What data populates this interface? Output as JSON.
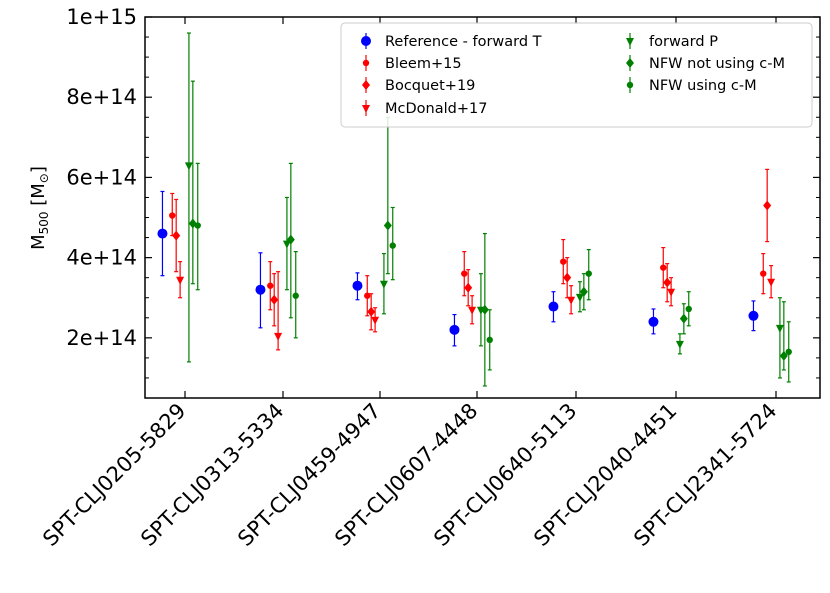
{
  "chart_data": {
    "type": "scatter",
    "title": "",
    "xlabel": "",
    "ylabel": "M500 [M⊙]",
    "ylabel_parts": {
      "base": "M",
      "sub": "500",
      "unit_open": " [M",
      "unit_sub": "⊙",
      "unit_close": "]"
    },
    "ylim": [
      50000000000000,
      1000000000000000
    ],
    "yticks": [
      200000000000000,
      400000000000000,
      600000000000000,
      800000000000000,
      1000000000000000
    ],
    "ytick_labels": [
      "2e+14",
      "4e+14",
      "6e+14",
      "8e+14",
      "1e+15"
    ],
    "categories": [
      "SPT-CLJ0205-5829",
      "SPT-CLJ0313-5334",
      "SPT-CLJ0459-4947",
      "SPT-CLJ0607-4448",
      "SPT-CLJ0640-5113",
      "SPT-CLJ2040-4451",
      "SPT-CLJ2341-5724"
    ],
    "legend_position": "top-right",
    "series": [
      {
        "name": "Reference - forward T",
        "color": "#0000ff",
        "marker": "circle",
        "offset": -0.23,
        "values": [
          460000000000000.0,
          320000000000000.0,
          330000000000000.0,
          220000000000000.0,
          278000000000000.0,
          240000000000000.0,
          255000000000000.0
        ],
        "lower": [
          355000000000000.0,
          225000000000000.0,
          295000000000000.0,
          180000000000000.0,
          240000000000000.0,
          210000000000000.0,
          218000000000000.0
        ],
        "upper": [
          565000000000000.0,
          412000000000000.0,
          362000000000000.0,
          258000000000000.0,
          315000000000000.0,
          272000000000000.0,
          292000000000000.0
        ]
      },
      {
        "name": "Bleem+15",
        "color": "#ff0000",
        "marker": "small-circle",
        "offset": -0.13,
        "values": [
          505000000000000.0,
          330000000000000.0,
          305000000000000.0,
          360000000000000.0,
          390000000000000.0,
          375000000000000.0,
          360000000000000.0
        ],
        "lower": [
          455000000000000.0,
          270000000000000.0,
          255000000000000.0,
          305000000000000.0,
          335000000000000.0,
          325000000000000.0,
          310000000000000.0
        ],
        "upper": [
          560000000000000.0,
          390000000000000.0,
          355000000000000.0,
          415000000000000.0,
          445000000000000.0,
          425000000000000.0,
          410000000000000.0
        ]
      },
      {
        "name": "Bocquet+19",
        "color": "#ff0000",
        "marker": "diamond",
        "offset": -0.09,
        "values": [
          455000000000000.0,
          295000000000000.0,
          265000000000000.0,
          325000000000000.0,
          350000000000000.0,
          338000000000000.0,
          530000000000000.0
        ],
        "lower": [
          365000000000000.0,
          230000000000000.0,
          220000000000000.0,
          280000000000000.0,
          300000000000000.0,
          290000000000000.0,
          440000000000000.0
        ],
        "upper": [
          545000000000000.0,
          360000000000000.0,
          310000000000000.0,
          370000000000000.0,
          400000000000000.0,
          385000000000000.0,
          620000000000000.0
        ]
      },
      {
        "name": "McDonald+17",
        "color": "#ff0000",
        "marker": "triangle-down",
        "offset": -0.05,
        "values": [
          345000000000000.0,
          205000000000000.0,
          245000000000000.0,
          270000000000000.0,
          295000000000000.0,
          315000000000000.0,
          340000000000000.0
        ],
        "lower": [
          300000000000000.0,
          170000000000000.0,
          215000000000000.0,
          235000000000000.0,
          260000000000000.0,
          280000000000000.0,
          300000000000000.0
        ],
        "upper": [
          390000000000000.0,
          365000000000000.0,
          275000000000000.0,
          305000000000000.0,
          330000000000000.0,
          350000000000000.0,
          380000000000000.0
        ]
      },
      {
        "name": "forward P",
        "color": "#008000",
        "marker": "triangle-down",
        "offset": 0.04,
        "values": [
          630000000000000.0,
          435000000000000.0,
          335000000000000.0,
          270000000000000.0,
          302000000000000.0,
          185000000000000.0,
          225000000000000.0
        ],
        "lower": [
          140000000000000.0,
          320000000000000.0,
          260000000000000.0,
          180000000000000.0,
          265000000000000.0,
          160000000000000.0,
          100000000000000.0
        ],
        "upper": [
          960000000000000.0,
          550000000000000.0,
          410000000000000.0,
          360000000000000.0,
          340000000000000.0,
          210000000000000.0,
          300000000000000.0
        ]
      },
      {
        "name": "NFW not using c-M",
        "color": "#008000",
        "marker": "diamond",
        "offset": 0.08,
        "values": [
          485000000000000.0,
          445000000000000.0,
          480000000000000.0,
          270000000000000.0,
          315000000000000.0,
          248000000000000.0,
          155000000000000.0
        ],
        "lower": [
          335000000000000.0,
          250000000000000.0,
          360000000000000.0,
          80000000000000.0,
          270000000000000.0,
          210000000000000.0,
          120000000000000.0
        ],
        "upper": [
          840000000000000.0,
          635000000000000.0,
          750000000000000.0,
          460000000000000.0,
          360000000000000.0,
          285000000000000.0,
          290000000000000.0
        ]
      },
      {
        "name": "NFW using c-M",
        "color": "#008000",
        "marker": "circle-small",
        "offset": 0.13,
        "values": [
          480000000000000.0,
          305000000000000.0,
          430000000000000.0,
          195000000000000.0,
          360000000000000.0,
          272000000000000.0,
          165000000000000.0
        ],
        "lower": [
          320000000000000.0,
          200000000000000.0,
          345000000000000.0,
          120000000000000.0,
          295000000000000.0,
          230000000000000.0,
          90000000000000.0
        ],
        "upper": [
          635000000000000.0,
          415000000000000.0,
          525000000000000.0,
          270000000000000.0,
          420000000000000.0,
          315000000000000.0,
          240000000000000.0
        ]
      }
    ]
  }
}
